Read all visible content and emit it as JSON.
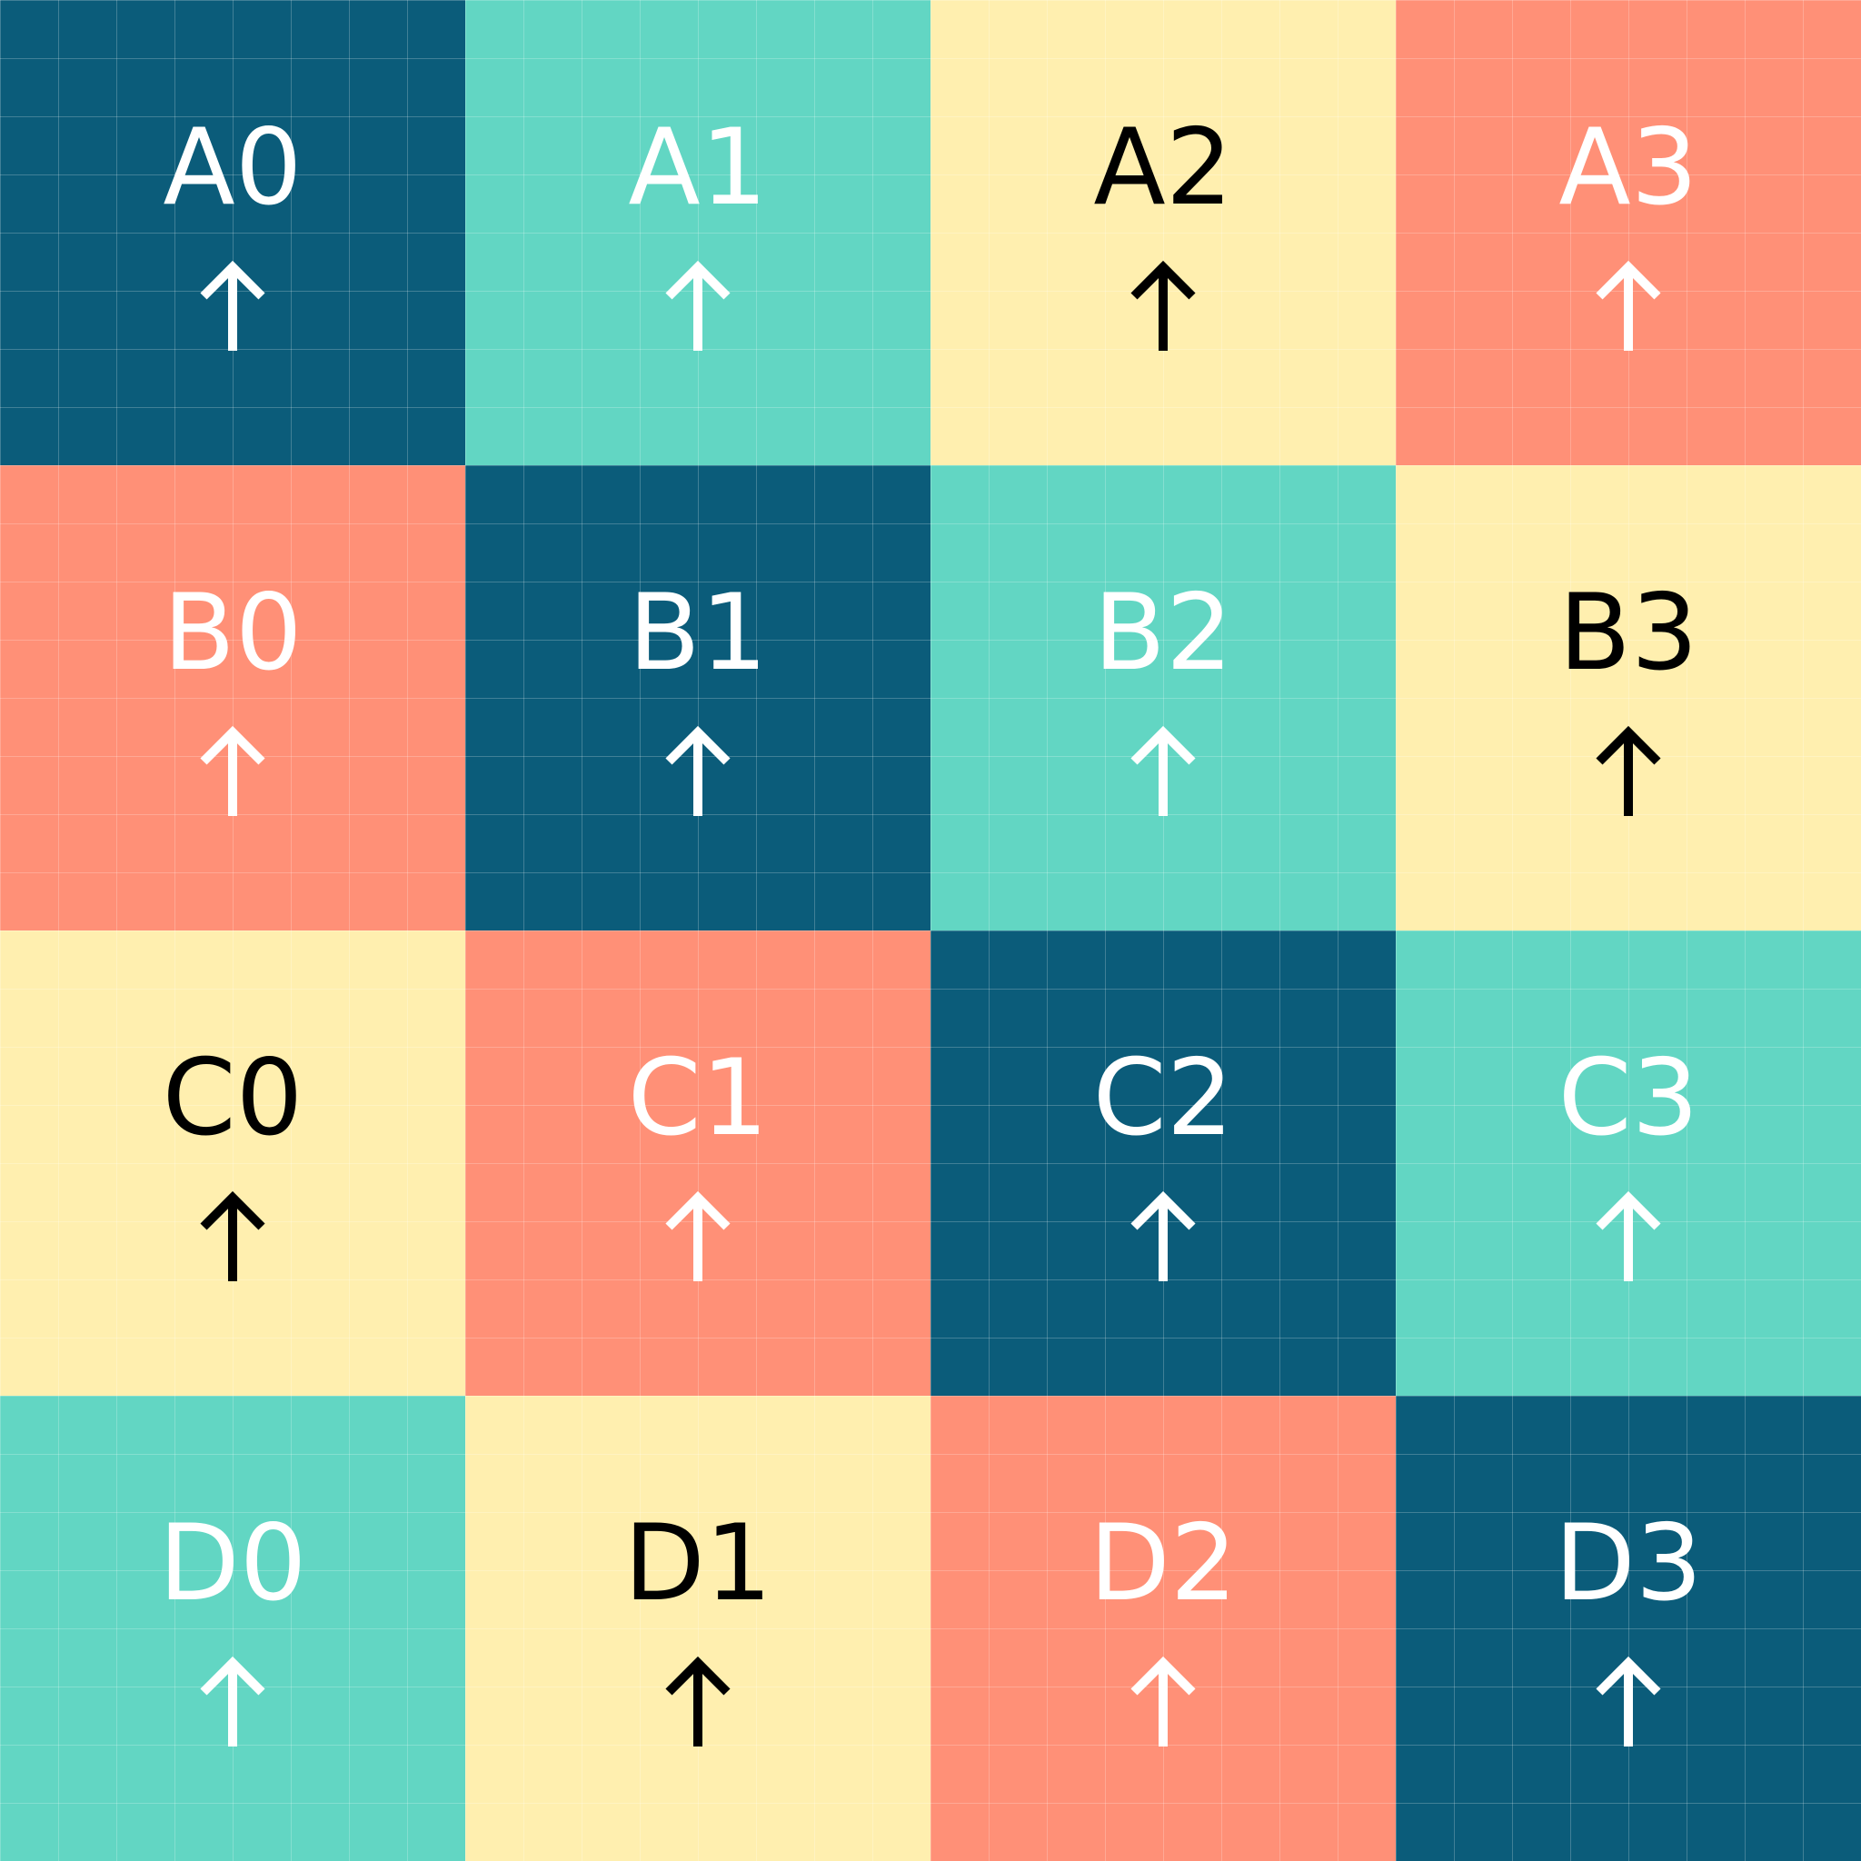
{
  "palette": {
    "navy": "#0b5c7a",
    "teal": "#62d6c3",
    "cream": "#ffefaf",
    "salmon": "#ff9077",
    "white": "#ffffff",
    "black": "#000000"
  },
  "tiles": [
    {
      "label": "A0",
      "bg": "#0b5c7a",
      "fg": "#ffffff",
      "icon": "up-arrow-icon"
    },
    {
      "label": "A1",
      "bg": "#62d6c3",
      "fg": "#ffffff",
      "icon": "up-arrow-icon"
    },
    {
      "label": "A2",
      "bg": "#ffefaf",
      "fg": "#000000",
      "icon": "up-arrow-icon"
    },
    {
      "label": "A3",
      "bg": "#ff9077",
      "fg": "#ffffff",
      "icon": "up-arrow-icon"
    },
    {
      "label": "B0",
      "bg": "#ff9077",
      "fg": "#ffffff",
      "icon": "up-arrow-icon"
    },
    {
      "label": "B1",
      "bg": "#0b5c7a",
      "fg": "#ffffff",
      "icon": "up-arrow-icon"
    },
    {
      "label": "B2",
      "bg": "#62d6c3",
      "fg": "#ffffff",
      "icon": "up-arrow-icon"
    },
    {
      "label": "B3",
      "bg": "#ffefaf",
      "fg": "#000000",
      "icon": "up-arrow-icon"
    },
    {
      "label": "C0",
      "bg": "#ffefaf",
      "fg": "#000000",
      "icon": "up-arrow-icon"
    },
    {
      "label": "C1",
      "bg": "#ff9077",
      "fg": "#ffffff",
      "icon": "up-arrow-icon"
    },
    {
      "label": "C2",
      "bg": "#0b5c7a",
      "fg": "#ffffff",
      "icon": "up-arrow-icon"
    },
    {
      "label": "C3",
      "bg": "#62d6c3",
      "fg": "#ffffff",
      "icon": "up-arrow-icon"
    },
    {
      "label": "D0",
      "bg": "#62d6c3",
      "fg": "#ffffff",
      "icon": "up-arrow-icon"
    },
    {
      "label": "D1",
      "bg": "#ffefaf",
      "fg": "#000000",
      "icon": "up-arrow-icon"
    },
    {
      "label": "D2",
      "bg": "#ff9077",
      "fg": "#ffffff",
      "icon": "up-arrow-icon"
    },
    {
      "label": "D3",
      "bg": "#0b5c7a",
      "fg": "#ffffff",
      "icon": "up-arrow-icon"
    }
  ]
}
